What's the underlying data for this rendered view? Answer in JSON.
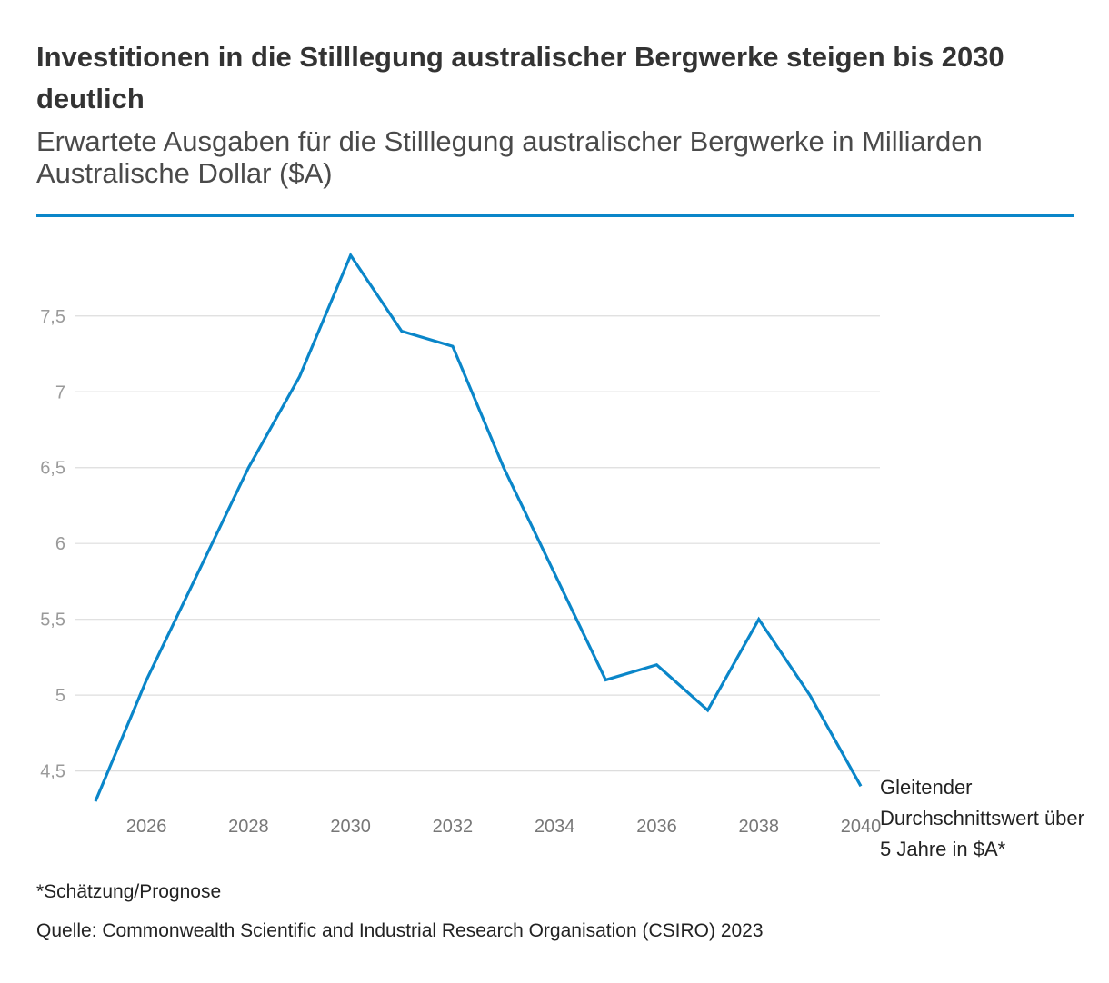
{
  "header": {
    "title": "Investitionen in die Stilllegung australischer Bergwerke steigen bis 2030 deutlich",
    "subtitle": "Erwartete Ausgaben für die Stilllegung australischer Bergwerke in Milliarden Australische Dollar ($A)"
  },
  "colors": {
    "accent": "#0a86c9",
    "grid": "#dddddd",
    "axis_text": "#9a9a9a"
  },
  "chart_data": {
    "type": "line",
    "title": "Investitionen in die Stilllegung australischer Bergwerke steigen bis 2030 deutlich",
    "subtitle": "Erwartete Ausgaben für die Stilllegung australischer Bergwerke in Milliarden Australische Dollar ($A)",
    "xlabel": "",
    "ylabel": "",
    "x": [
      2025,
      2026,
      2027,
      2028,
      2029,
      2030,
      2031,
      2032,
      2033,
      2034,
      2035,
      2036,
      2037,
      2038,
      2039,
      2040
    ],
    "xlim": [
      2025,
      2040
    ],
    "x_ticks": [
      2026,
      2028,
      2030,
      2032,
      2034,
      2036,
      2038,
      2040
    ],
    "x_tick_labels": [
      "2026",
      "2028",
      "2030",
      "2032",
      "2034",
      "2036",
      "2038",
      "2040"
    ],
    "ylim": [
      4.3,
      7.9
    ],
    "y_ticks": [
      4.5,
      5,
      5.5,
      6,
      6.5,
      7,
      7.5
    ],
    "y_tick_labels": [
      "4,5",
      "5",
      "5,5",
      "6",
      "6,5",
      "7",
      "7,5"
    ],
    "grid": true,
    "series": [
      {
        "name": "Gleitender Durchschnittswert über 5 Jahre in $A*",
        "values": [
          4.3,
          5.1,
          5.8,
          6.5,
          7.1,
          7.9,
          7.4,
          7.3,
          6.5,
          5.8,
          5.1,
          5.2,
          4.9,
          5.5,
          5.0,
          4.4
        ]
      }
    ]
  },
  "footer": {
    "footnote": "*Schätzung/Prognose",
    "source": "Quelle: Commonwealth Scientific and Industrial Research Organisation (CSIRO) 2023"
  }
}
